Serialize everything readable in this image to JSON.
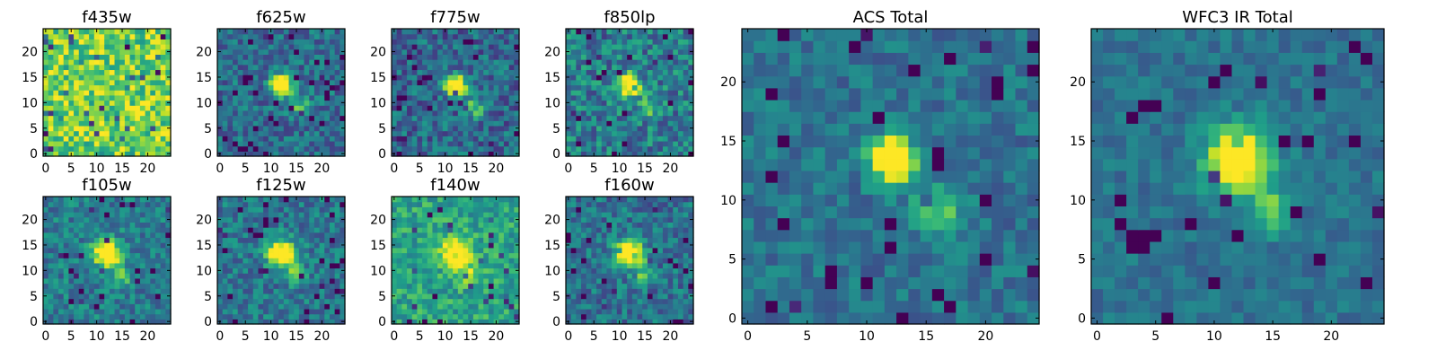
{
  "chart_data": [
    {
      "type": "heatmap",
      "title": "f435w",
      "colormap": "viridis",
      "grid_size": 25,
      "xlim": [
        0,
        24
      ],
      "ylim": [
        0,
        24
      ],
      "xticks": [
        0,
        5,
        10,
        15,
        20
      ],
      "yticks": [
        0,
        5,
        10,
        15,
        20
      ],
      "source": {
        "peak": [
          12,
          13.5
        ],
        "sigma": 3.5,
        "amplitude": 0.0
      },
      "background": 0.78,
      "noise": 0.24,
      "seed": 11
    },
    {
      "type": "heatmap",
      "title": "f625w",
      "colormap": "viridis",
      "grid_size": 25,
      "xlim": [
        0,
        24
      ],
      "ylim": [
        0,
        24
      ],
      "xticks": [
        0,
        5,
        10,
        15,
        20
      ],
      "yticks": [
        0,
        5,
        10,
        15,
        20
      ],
      "source": {
        "peak": [
          12,
          13.5
        ],
        "sigma": 1.4,
        "amplitude": 0.65,
        "tail": [
          16,
          9
        ]
      },
      "background": 0.36,
      "noise": 0.18,
      "seed": 23
    },
    {
      "type": "heatmap",
      "title": "f775w",
      "colormap": "viridis",
      "grid_size": 25,
      "xlim": [
        0,
        24
      ],
      "ylim": [
        0,
        24
      ],
      "xticks": [
        0,
        5,
        10,
        15,
        20
      ],
      "yticks": [
        0,
        5,
        10,
        15,
        20
      ],
      "source": {
        "peak": [
          12,
          13.5
        ],
        "sigma": 1.4,
        "amplitude": 0.62,
        "tail": [
          16,
          9
        ]
      },
      "background": 0.34,
      "noise": 0.2,
      "seed": 37
    },
    {
      "type": "heatmap",
      "title": "f850lp",
      "colormap": "viridis",
      "grid_size": 25,
      "xlim": [
        0,
        24
      ],
      "ylim": [
        0,
        24
      ],
      "xticks": [
        0,
        5,
        10,
        15,
        20
      ],
      "yticks": [
        0,
        5,
        10,
        15,
        20
      ],
      "source": {
        "peak": [
          12,
          13.5
        ],
        "sigma": 1.4,
        "amplitude": 0.55,
        "tail": [
          16,
          9
        ]
      },
      "background": 0.42,
      "noise": 0.22,
      "seed": 41
    },
    {
      "type": "heatmap",
      "title": "f105w",
      "colormap": "viridis",
      "grid_size": 25,
      "xlim": [
        0,
        24
      ],
      "ylim": [
        0,
        24
      ],
      "xticks": [
        0,
        5,
        10,
        15,
        20
      ],
      "yticks": [
        0,
        5,
        10,
        15,
        20
      ],
      "source": {
        "peak": [
          12,
          13.5
        ],
        "sigma": 1.8,
        "amplitude": 0.55,
        "tail": [
          15,
          9
        ]
      },
      "background": 0.42,
      "noise": 0.17,
      "seed": 53
    },
    {
      "type": "heatmap",
      "title": "f125w",
      "colormap": "viridis",
      "grid_size": 25,
      "xlim": [
        0,
        24
      ],
      "ylim": [
        0,
        24
      ],
      "xticks": [
        0,
        5,
        10,
        15,
        20
      ],
      "yticks": [
        0,
        5,
        10,
        15,
        20
      ],
      "source": {
        "peak": [
          12,
          13.5
        ],
        "sigma": 1.8,
        "amplitude": 0.58,
        "tail": [
          15,
          9
        ]
      },
      "background": 0.4,
      "noise": 0.17,
      "seed": 67
    },
    {
      "type": "heatmap",
      "title": "f140w",
      "colormap": "viridis",
      "grid_size": 25,
      "xlim": [
        0,
        24
      ],
      "ylim": [
        0,
        24
      ],
      "xticks": [
        0,
        5,
        10,
        15,
        20
      ],
      "yticks": [
        0,
        5,
        10,
        15,
        20
      ],
      "source": {
        "peak": [
          12,
          13.5
        ],
        "sigma": 1.9,
        "amplitude": 0.45,
        "tail": [
          15,
          9
        ]
      },
      "background": 0.58,
      "noise": 0.17,
      "seed": 79
    },
    {
      "type": "heatmap",
      "title": "f160w",
      "colormap": "viridis",
      "grid_size": 25,
      "xlim": [
        0,
        24
      ],
      "ylim": [
        0,
        24
      ],
      "xticks": [
        0,
        5,
        10,
        15,
        20
      ],
      "yticks": [
        0,
        5,
        10,
        15,
        20
      ],
      "source": {
        "peak": [
          12,
          13.5
        ],
        "sigma": 1.8,
        "amplitude": 0.58,
        "tail": [
          15,
          9
        ]
      },
      "background": 0.38,
      "noise": 0.18,
      "seed": 83
    },
    {
      "type": "heatmap",
      "title": "ACS Total",
      "colormap": "viridis",
      "grid_size": 25,
      "xlim": [
        0,
        24
      ],
      "ylim": [
        0,
        24
      ],
      "xticks": [
        0,
        5,
        10,
        15,
        20
      ],
      "yticks": [
        0,
        5,
        10,
        15,
        20
      ],
      "source": {
        "peak": [
          12,
          13.5
        ],
        "sigma": 1.3,
        "amplitude": 0.6,
        "tail": [
          16,
          9
        ]
      },
      "background": 0.38,
      "noise": 0.13,
      "seed": 97
    },
    {
      "type": "heatmap",
      "title": "WFC3 IR Total",
      "colormap": "viridis",
      "grid_size": 25,
      "xlim": [
        0,
        24
      ],
      "ylim": [
        0,
        24
      ],
      "xticks": [
        0,
        5,
        10,
        15,
        20
      ],
      "yticks": [
        0,
        5,
        10,
        15,
        20
      ],
      "source": {
        "peak": [
          12,
          13.5
        ],
        "sigma": 1.8,
        "amplitude": 0.58,
        "tail": [
          15,
          9
        ]
      },
      "background": 0.38,
      "noise": 0.1,
      "seed": 101
    }
  ]
}
